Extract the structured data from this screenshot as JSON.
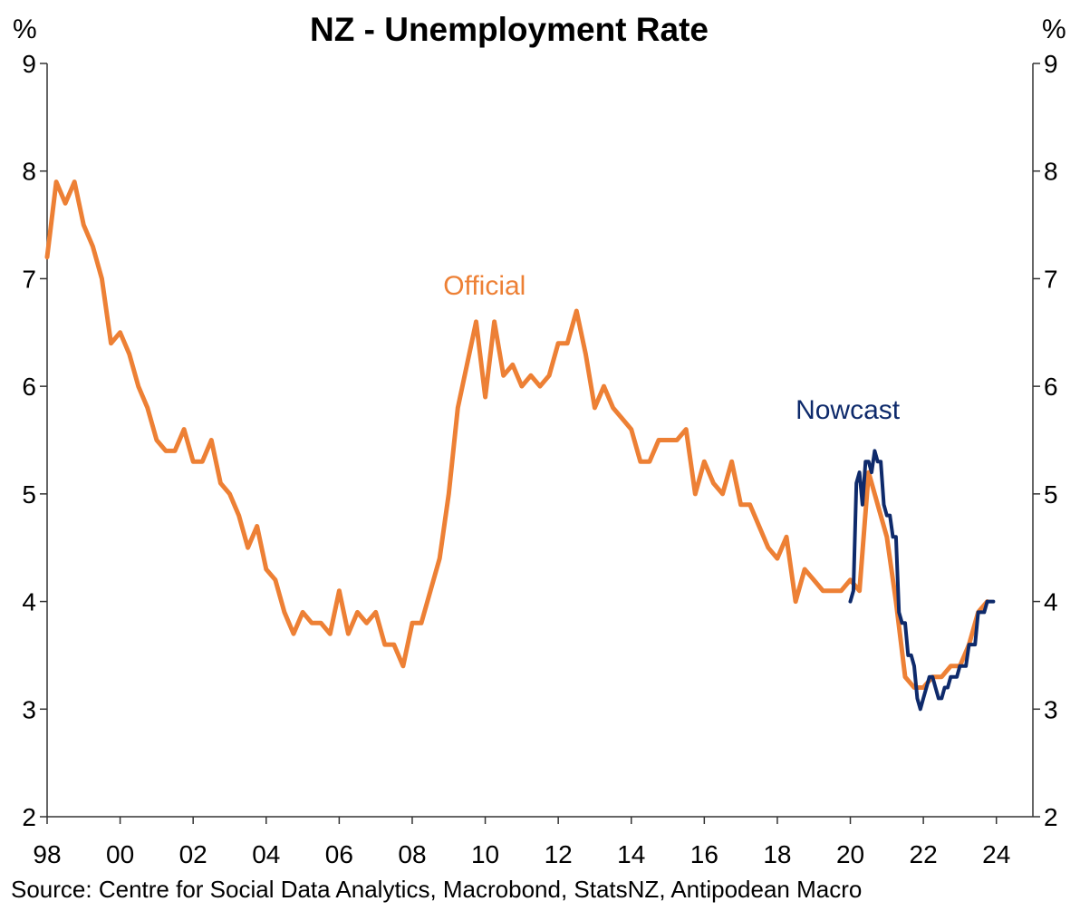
{
  "chart_data": {
    "type": "line",
    "title": "NZ - Unemployment Rate",
    "ylabel_left": "%",
    "ylabel_right": "%",
    "source": "Source: Centre for Social Data Analytics, Macrobond, StatsNZ, Antipodean Macro",
    "x_ticks": [
      "98",
      "00",
      "02",
      "04",
      "06",
      "08",
      "10",
      "12",
      "14",
      "16",
      "18",
      "20",
      "22",
      "24"
    ],
    "x_tick_years": [
      1998,
      2000,
      2002,
      2004,
      2006,
      2008,
      2010,
      2012,
      2014,
      2016,
      2018,
      2020,
      2022,
      2024
    ],
    "xlim": [
      1998,
      2025
    ],
    "ylim": [
      2,
      9
    ],
    "y_ticks": [
      2,
      3,
      4,
      5,
      6,
      7,
      8,
      9
    ],
    "grid": false,
    "series": [
      {
        "name": "Official",
        "color": "#ED8035",
        "x": [
          1998.0,
          1998.25,
          1998.5,
          1998.75,
          1999.0,
          1999.25,
          1999.5,
          1999.75,
          2000.0,
          2000.25,
          2000.5,
          2000.75,
          2001.0,
          2001.25,
          2001.5,
          2001.75,
          2002.0,
          2002.25,
          2002.5,
          2002.75,
          2003.0,
          2003.25,
          2003.5,
          2003.75,
          2004.0,
          2004.25,
          2004.5,
          2004.75,
          2005.0,
          2005.25,
          2005.5,
          2005.75,
          2006.0,
          2006.25,
          2006.5,
          2006.75,
          2007.0,
          2007.25,
          2007.5,
          2007.75,
          2008.0,
          2008.25,
          2008.5,
          2008.75,
          2009.0,
          2009.25,
          2009.5,
          2009.75,
          2010.0,
          2010.25,
          2010.5,
          2010.75,
          2011.0,
          2011.25,
          2011.5,
          2011.75,
          2012.0,
          2012.25,
          2012.5,
          2012.75,
          2013.0,
          2013.25,
          2013.5,
          2013.75,
          2014.0,
          2014.25,
          2014.5,
          2014.75,
          2015.0,
          2015.25,
          2015.5,
          2015.75,
          2016.0,
          2016.25,
          2016.5,
          2016.75,
          2017.0,
          2017.25,
          2017.5,
          2017.75,
          2018.0,
          2018.25,
          2018.5,
          2018.75,
          2019.0,
          2019.25,
          2019.5,
          2019.75,
          2020.0,
          2020.25,
          2020.5,
          2020.75,
          2021.0,
          2021.25,
          2021.5,
          2021.75,
          2022.0,
          2022.25,
          2022.5,
          2022.75,
          2023.0,
          2023.25,
          2023.5,
          2023.75
        ],
        "values": [
          7.2,
          7.9,
          7.7,
          7.9,
          7.5,
          7.3,
          7.0,
          6.4,
          6.5,
          6.3,
          6.0,
          5.8,
          5.5,
          5.4,
          5.4,
          5.6,
          5.3,
          5.3,
          5.5,
          5.1,
          5.0,
          4.8,
          4.5,
          4.7,
          4.3,
          4.2,
          3.9,
          3.7,
          3.9,
          3.8,
          3.8,
          3.7,
          4.1,
          3.7,
          3.9,
          3.8,
          3.9,
          3.6,
          3.6,
          3.4,
          3.8,
          3.8,
          4.1,
          4.4,
          5.0,
          5.8,
          6.2,
          6.6,
          5.9,
          6.6,
          6.1,
          6.2,
          6.0,
          6.1,
          6.0,
          6.1,
          6.4,
          6.4,
          6.7,
          6.3,
          5.8,
          6.0,
          5.8,
          5.7,
          5.6,
          5.3,
          5.3,
          5.5,
          5.5,
          5.5,
          5.6,
          5.0,
          5.3,
          5.1,
          5.0,
          5.3,
          4.9,
          4.9,
          4.7,
          4.5,
          4.4,
          4.6,
          4.0,
          4.3,
          4.2,
          4.1,
          4.1,
          4.1,
          4.2,
          4.1,
          5.2,
          4.9,
          4.6,
          4.0,
          3.3,
          3.2,
          3.2,
          3.3,
          3.3,
          3.4,
          3.4,
          3.6,
          3.9,
          4.0
        ]
      },
      {
        "name": "Nowcast",
        "color": "#0E2A6B",
        "x": [
          2020.0,
          2020.083,
          2020.167,
          2020.25,
          2020.333,
          2020.417,
          2020.5,
          2020.583,
          2020.667,
          2020.75,
          2020.833,
          2020.917,
          2021.0,
          2021.083,
          2021.167,
          2021.25,
          2021.333,
          2021.417,
          2021.5,
          2021.583,
          2021.667,
          2021.75,
          2021.833,
          2021.917,
          2022.0,
          2022.083,
          2022.167,
          2022.25,
          2022.333,
          2022.417,
          2022.5,
          2022.583,
          2022.667,
          2022.75,
          2022.833,
          2022.917,
          2023.0,
          2023.083,
          2023.167,
          2023.25,
          2023.333,
          2023.417,
          2023.5,
          2023.583,
          2023.667,
          2023.75,
          2023.833,
          2023.917
        ],
        "values": [
          4.0,
          4.1,
          5.1,
          5.2,
          4.9,
          5.3,
          5.3,
          5.2,
          5.4,
          5.3,
          5.3,
          4.9,
          4.8,
          4.8,
          4.6,
          4.6,
          3.9,
          3.8,
          3.8,
          3.5,
          3.5,
          3.4,
          3.1,
          3.0,
          3.1,
          3.2,
          3.3,
          3.3,
          3.2,
          3.1,
          3.1,
          3.2,
          3.2,
          3.3,
          3.3,
          3.3,
          3.4,
          3.4,
          3.4,
          3.6,
          3.6,
          3.6,
          3.9,
          3.9,
          3.9,
          4.0,
          4.0,
          4.0
        ]
      }
    ],
    "annotations": [
      {
        "text": "Official",
        "color": "#ED8035",
        "x": 2008.85,
        "y": 6.85
      },
      {
        "text": "Nowcast",
        "color": "#0E2A6B",
        "x": 2018.5,
        "y": 5.7
      }
    ]
  }
}
